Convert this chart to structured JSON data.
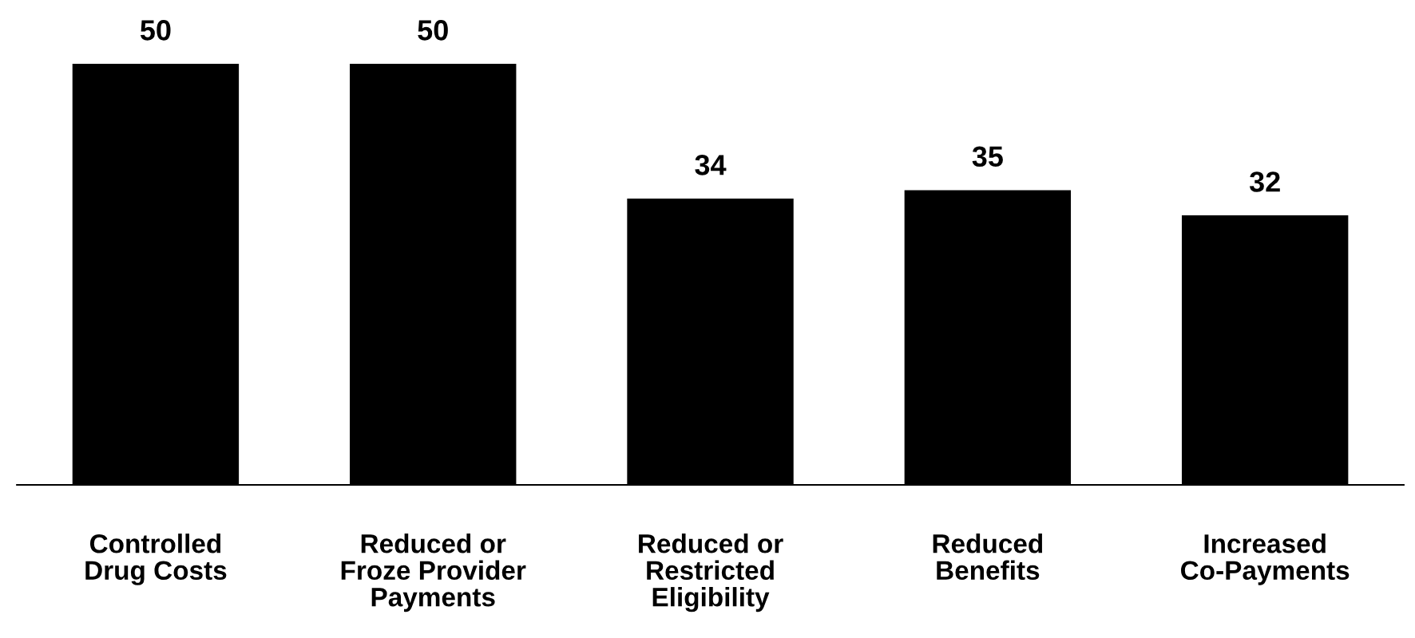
{
  "chart_data": {
    "type": "bar",
    "categories": [
      "Controlled\nDrug Costs",
      "Reduced or\nFroze Provider\nPayments",
      "Reduced or\nRestricted\nEligibility",
      "Reduced\nBenefits",
      "Increased\nCo-Payments"
    ],
    "values": [
      50,
      50,
      34,
      35,
      32
    ],
    "color": "#000000",
    "data_labels": true,
    "grid": false,
    "legend": false
  }
}
